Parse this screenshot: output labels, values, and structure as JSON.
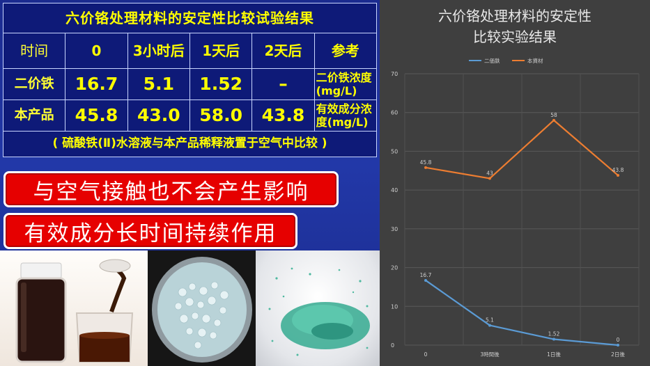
{
  "slide": {
    "table_title": "六价铬处理材料的安定性比较试验结果",
    "headers": [
      "时间",
      "0",
      "3小时后",
      "1天后",
      "2天后",
      "参考"
    ],
    "rows": [
      {
        "label": "二价铁",
        "values": [
          "16.7",
          "5.1",
          "1.52",
          "–"
        ],
        "ref": "二价铁浓度(mg/L)"
      },
      {
        "label": "本产品",
        "values": [
          "45.8",
          "43.0",
          "58.0",
          "43.8"
        ],
        "ref": "有效成分浓度(mg/L)"
      }
    ],
    "note": "( 硫酸铁(Ⅱ)水溶液与本产品稀释液置于空气中比较 )",
    "banner1": "与空气接触也不会产生影响",
    "banner2": "有效成分长时间持续作用"
  },
  "chart_data": {
    "type": "line",
    "title": "六价铬处理材料的安定性比较实验结果",
    "categories": [
      "0",
      "3時間後",
      "1日後",
      "2日後"
    ],
    "series": [
      {
        "name": "二価鉄",
        "values": [
          16.7,
          5.1,
          1.52,
          0
        ],
        "point_labels": [
          "16.7",
          "5.1",
          "1.52",
          "0"
        ],
        "color": "#5b9bd5"
      },
      {
        "name": "本資材",
        "values": [
          45.8,
          43,
          58,
          43.8
        ],
        "point_labels": [
          "45.8",
          "43",
          "58",
          "43.8"
        ],
        "color": "#ed7d31"
      }
    ],
    "ylim": [
      0,
      70
    ],
    "yticks": [
      0,
      10,
      20,
      30,
      40,
      50,
      60,
      70
    ],
    "grid": true,
    "legend_position": "top"
  }
}
